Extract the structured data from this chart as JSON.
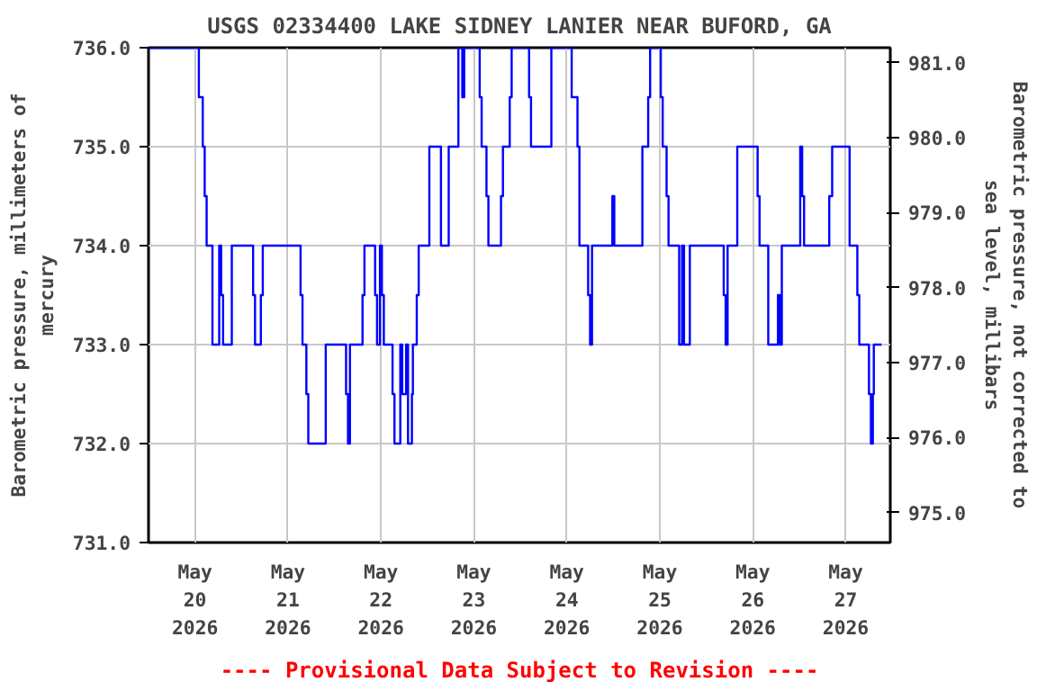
{
  "chart_data": {
    "type": "step",
    "title": "USGS 02334400 LAKE SIDNEY LANIER NEAR BUFORD, GA",
    "ylabel": "Barometric pressure, millimeters of\nmercury",
    "y2label": "Barometric pressure, not corrected to\nsea level, millibars",
    "annotations": [
      "---- Provisional Data Subject to Revision ----"
    ],
    "x": [
      "2026-05-19T12:00",
      "2026-05-20T01:00",
      "2026-05-20T02:00",
      "2026-05-20T02:30",
      "2026-05-20T03:00",
      "2026-05-20T04:30",
      "2026-05-20T06:15",
      "2026-05-20T06:45",
      "2026-05-20T07:15",
      "2026-05-20T09:30",
      "2026-05-20T15:00",
      "2026-05-20T15:30",
      "2026-05-20T17:00",
      "2026-05-20T17:30",
      "2026-05-21T03:15",
      "2026-05-21T03:45",
      "2026-05-21T04:45",
      "2026-05-21T05:15",
      "2026-05-21T09:45",
      "2026-05-21T15:00",
      "2026-05-21T15:30",
      "2026-05-21T16:00",
      "2026-05-21T19:15",
      "2026-05-21T19:45",
      "2026-05-21T22:30",
      "2026-05-21T23:00",
      "2026-05-21T23:45",
      "2026-05-22T00:15",
      "2026-05-22T00:45",
      "2026-05-22T03:00",
      "2026-05-22T03:30",
      "2026-05-22T05:00",
      "2026-05-22T05:30",
      "2026-05-22T06:30",
      "2026-05-22T07:00",
      "2026-05-22T08:00",
      "2026-05-22T08:15",
      "2026-05-22T09:15",
      "2026-05-22T09:45",
      "2026-05-22T12:30",
      "2026-05-22T15:30",
      "2026-05-22T17:30",
      "2026-05-22T20:00",
      "2026-05-22T21:00",
      "2026-05-22T21:30",
      "2026-05-23T01:30",
      "2026-05-23T02:00",
      "2026-05-23T03:15",
      "2026-05-23T03:45",
      "2026-05-23T07:00",
      "2026-05-23T07:30",
      "2026-05-23T09:15",
      "2026-05-23T09:45",
      "2026-05-23T14:15",
      "2026-05-23T14:45",
      "2026-05-23T20:00",
      "2026-05-24T01:15",
      "2026-05-24T02:45",
      "2026-05-24T03:15",
      "2026-05-24T05:30",
      "2026-05-24T06:00",
      "2026-05-24T06:30",
      "2026-05-24T11:45",
      "2026-05-24T12:15",
      "2026-05-24T19:30",
      "2026-05-24T21:00",
      "2026-05-24T21:30",
      "2026-05-25T00:15",
      "2026-05-25T00:45",
      "2026-05-25T01:45",
      "2026-05-25T02:15",
      "2026-05-25T05:00",
      "2026-05-25T05:45",
      "2026-05-25T06:15",
      "2026-05-25T07:45",
      "2026-05-25T16:30",
      "2026-05-25T17:00",
      "2026-05-25T17:30",
      "2026-05-25T20:00",
      "2026-05-26T01:15",
      "2026-05-26T01:45",
      "2026-05-26T04:00",
      "2026-05-26T06:30",
      "2026-05-26T07:00",
      "2026-05-26T07:30",
      "2026-05-26T12:15",
      "2026-05-26T12:45",
      "2026-05-26T13:15",
      "2026-05-26T19:45",
      "2026-05-26T20:30",
      "2026-05-27T01:00",
      "2026-05-27T03:00",
      "2026-05-27T03:30",
      "2026-05-27T06:00",
      "2026-05-27T06:30",
      "2026-05-27T07:00",
      "2026-05-27T07:15",
      "2026-05-27T09:15"
    ],
    "series": [
      {
        "color": "#0000ff",
        "values": [
          736,
          735.5,
          735,
          734.5,
          734,
          733,
          734,
          733.5,
          733,
          734,
          733.5,
          733,
          733.5,
          734,
          733.5,
          733,
          732.5,
          732,
          733,
          732.5,
          732,
          733,
          733.5,
          734,
          733.5,
          733,
          734,
          733.5,
          733,
          732.5,
          732,
          733,
          732.5,
          733,
          732,
          732.5,
          733,
          733.5,
          734,
          735,
          734,
          735,
          736,
          735.5,
          736,
          735.5,
          735,
          734.5,
          734,
          734.5,
          735,
          735.5,
          736,
          735.5,
          735,
          736,
          735.5,
          735,
          734,
          733.5,
          733,
          734,
          734.5,
          734,
          735,
          735.5,
          736,
          735.5,
          735,
          734.5,
          734,
          733,
          734,
          733,
          734,
          733.5,
          733,
          734,
          735,
          734.5,
          734,
          733,
          733.5,
          733,
          734,
          735,
          734.5,
          734,
          734.5,
          735,
          734,
          733.5,
          733,
          732.5,
          732,
          732.5,
          733,
          733
        ]
      }
    ],
    "xlim": [
      "2026-05-19T12:00",
      "2026-05-27T11:30"
    ],
    "xticks": [
      {
        "value": "2026-05-20",
        "label": "May\n20\n2026"
      },
      {
        "value": "2026-05-21",
        "label": "May\n21\n2026"
      },
      {
        "value": "2026-05-22",
        "label": "May\n22\n2026"
      },
      {
        "value": "2026-05-23",
        "label": "May\n23\n2026"
      },
      {
        "value": "2026-05-24",
        "label": "May\n24\n2026"
      },
      {
        "value": "2026-05-25",
        "label": "May\n25\n2026"
      },
      {
        "value": "2026-05-26",
        "label": "May\n26\n2026"
      },
      {
        "value": "2026-05-27",
        "label": "May\n27\n2026"
      }
    ],
    "ylim": [
      731,
      736
    ],
    "yticks": [
      {
        "value": 731,
        "label": "731.0"
      },
      {
        "value": 732,
        "label": "732.0"
      },
      {
        "value": 733,
        "label": "733.0"
      },
      {
        "value": 734,
        "label": "734.0"
      },
      {
        "value": 735,
        "label": "735.0"
      },
      {
        "value": 736,
        "label": "736.0"
      }
    ],
    "y2lim": [
      974.6,
      981.2
    ],
    "y2ticks": [
      {
        "value": 975,
        "label": "975.0"
      },
      {
        "value": 976,
        "label": "976.0"
      },
      {
        "value": 977,
        "label": "977.0"
      },
      {
        "value": 978,
        "label": "978.0"
      },
      {
        "value": 979,
        "label": "979.0"
      },
      {
        "value": 980,
        "label": "980.0"
      },
      {
        "value": 981,
        "label": "981.0"
      }
    ],
    "grid": true,
    "line_style": "solid"
  }
}
